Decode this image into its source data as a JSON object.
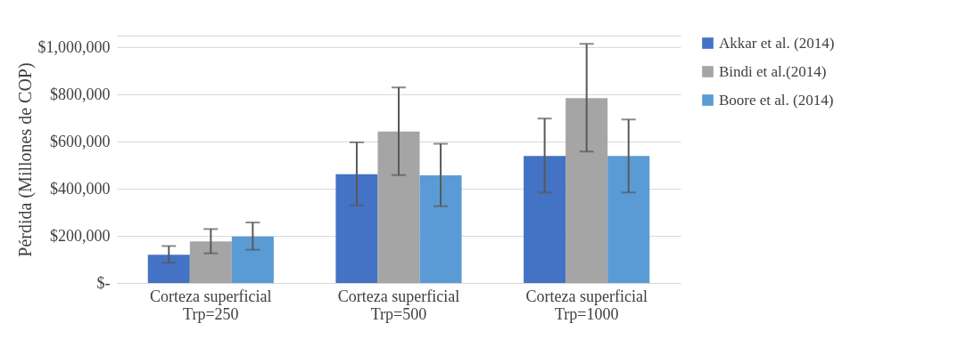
{
  "chart_data": {
    "type": "bar",
    "ylabel": "Pérdida (Millones de COP)",
    "categories": [
      "Corteza superficial\nTrp=250",
      "Corteza superficial\nTrp=500",
      "Corteza superficial\nTrp=1000"
    ],
    "series": [
      {
        "name": "Akkar et al. (2014)",
        "color": "#4472c4",
        "values": [
          120000,
          462000,
          539000
        ],
        "errors": [
          [
            86000,
            157000
          ],
          [
            329000,
            597000
          ],
          [
            384000,
            698000
          ]
        ]
      },
      {
        "name": "Bindi et al.(2014)",
        "color": "#a5a5a5",
        "values": [
          177000,
          643000,
          785000
        ],
        "errors": [
          [
            126000,
            229000
          ],
          [
            458000,
            830000
          ],
          [
            558000,
            1015000
          ]
        ]
      },
      {
        "name": "Boore et al. (2014)",
        "color": "#5b9bd5",
        "values": [
          197000,
          457000,
          539000
        ],
        "errors": [
          [
            141000,
            257000
          ],
          [
            326000,
            591000
          ],
          [
            384000,
            694000
          ]
        ]
      }
    ],
    "ylim": [
      0,
      1050000
    ],
    "yticks": [
      {
        "value": 0,
        "label": "$-"
      },
      {
        "value": 200000,
        "label": "$200,000"
      },
      {
        "value": 400000,
        "label": "$400,000"
      },
      {
        "value": 600000,
        "label": "$600,000"
      },
      {
        "value": 800000,
        "label": "$800,000"
      },
      {
        "value": 1000000,
        "label": "$1,000,000"
      },
      {
        "value": 1050000,
        "label": null
      }
    ],
    "grid": true,
    "legend": "right"
  }
}
